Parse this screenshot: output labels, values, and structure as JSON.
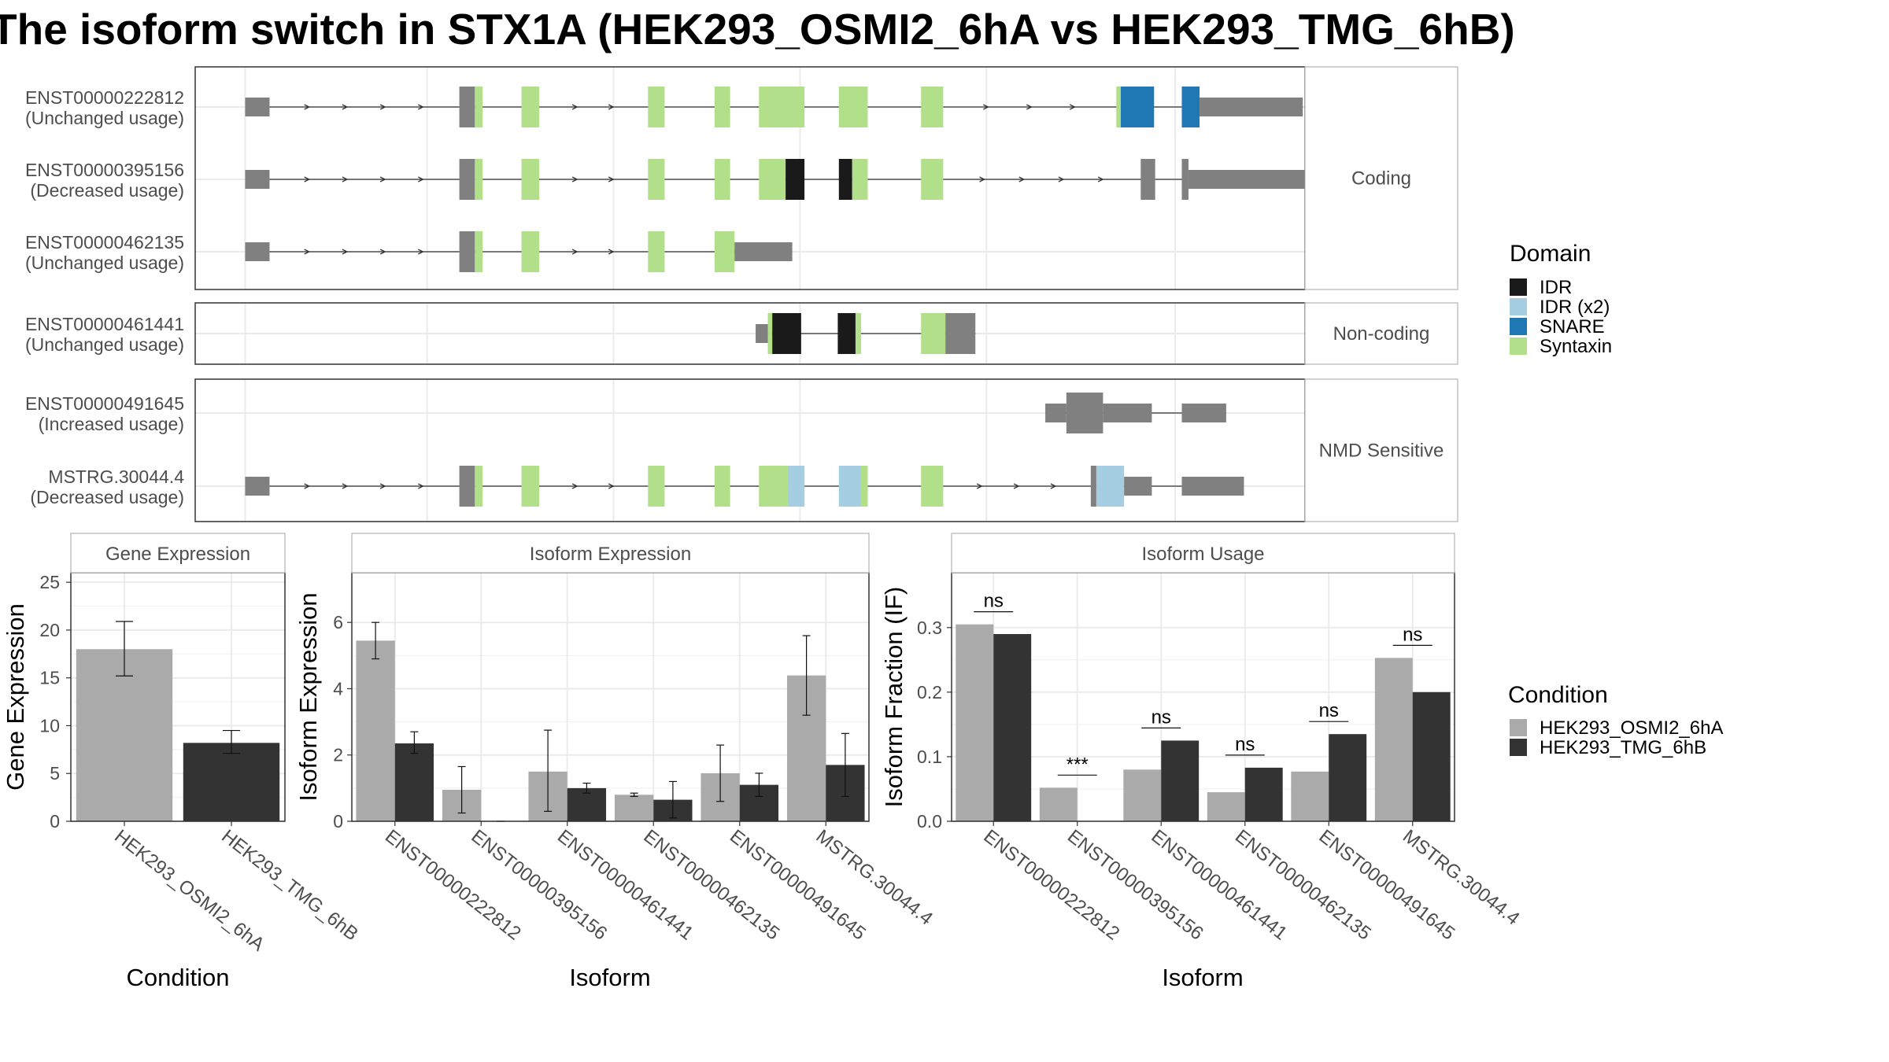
{
  "title": "The isoform switch in STX1A (HEK293_OSMI2_6hA vs HEK293_TMG_6hB)",
  "colors": {
    "exon": "#808080",
    "IDR": "#1a1a1a",
    "IDR (x2)": "#a6cee3",
    "SNARE": "#1f78b4",
    "Syntaxin": "#b2df8a",
    "cond_a": "#aaaaaa",
    "cond_b": "#333333"
  },
  "legend_domain": {
    "title": "Domain",
    "items": [
      {
        "label": "IDR",
        "color": "#1a1a1a"
      },
      {
        "label": "IDR (x2)",
        "color": "#a6cee3"
      },
      {
        "label": "SNARE",
        "color": "#1f78b4"
      },
      {
        "label": "Syntaxin",
        "color": "#b2df8a"
      }
    ]
  },
  "legend_condition": {
    "title": "Condition",
    "items": [
      {
        "label": "HEK293_OSMI2_6hA",
        "color": "#aaaaaa"
      },
      {
        "label": "HEK293_TMG_6hB",
        "color": "#333333"
      }
    ]
  },
  "transcript_panels": [
    {
      "label": "Coding",
      "transcripts": [
        {
          "id": "ENST00000222812",
          "usage": "(Unchanged usage)",
          "span": [
            0.045,
            0.998
          ],
          "exons": [
            [
              0.045,
              0.067,
              "s"
            ],
            [
              0.238,
              0.252,
              "t"
            ],
            [
              0.252,
              0.259,
              "t",
              "Syntaxin"
            ],
            [
              0.294,
              0.31,
              "t",
              "Syntaxin"
            ],
            [
              0.408,
              0.423,
              "t",
              "Syntaxin"
            ],
            [
              0.468,
              0.482,
              "t",
              "Syntaxin"
            ],
            [
              0.508,
              0.549,
              "t",
              "Syntaxin"
            ],
            [
              0.58,
              0.606,
              "t",
              "Syntaxin"
            ],
            [
              0.654,
              0.674,
              "t",
              "Syntaxin"
            ],
            [
              0.83,
              0.834,
              "t",
              "Syntaxin"
            ],
            [
              0.834,
              0.864,
              "t",
              "SNARE"
            ],
            [
              0.889,
              0.905,
              "t",
              "SNARE"
            ],
            [
              0.905,
              0.998,
              "s"
            ]
          ]
        },
        {
          "id": "ENST00000395156",
          "usage": "(Decreased usage)",
          "span": [
            0.045,
            1.002
          ],
          "exons": [
            [
              0.045,
              0.067,
              "s"
            ],
            [
              0.238,
              0.252,
              "t"
            ],
            [
              0.252,
              0.259,
              "t",
              "Syntaxin"
            ],
            [
              0.294,
              0.31,
              "t",
              "Syntaxin"
            ],
            [
              0.408,
              0.423,
              "t",
              "Syntaxin"
            ],
            [
              0.468,
              0.482,
              "t",
              "Syntaxin"
            ],
            [
              0.508,
              0.532,
              "t",
              "Syntaxin"
            ],
            [
              0.532,
              0.549,
              "t",
              "IDR"
            ],
            [
              0.58,
              0.592,
              "t",
              "IDR"
            ],
            [
              0.592,
              0.606,
              "t",
              "Syntaxin"
            ],
            [
              0.654,
              0.674,
              "t",
              "Syntaxin"
            ],
            [
              0.852,
              0.865,
              "t"
            ],
            [
              0.889,
              0.895,
              "t"
            ],
            [
              0.895,
              1.002,
              "s"
            ]
          ]
        },
        {
          "id": "ENST00000462135",
          "usage": "(Unchanged usage)",
          "span": [
            0.045,
            0.538
          ],
          "exons": [
            [
              0.045,
              0.067,
              "s"
            ],
            [
              0.238,
              0.252,
              "t"
            ],
            [
              0.252,
              0.259,
              "t",
              "Syntaxin"
            ],
            [
              0.294,
              0.31,
              "t",
              "Syntaxin"
            ],
            [
              0.408,
              0.423,
              "t",
              "Syntaxin"
            ],
            [
              0.468,
              0.486,
              "t",
              "Syntaxin"
            ],
            [
              0.486,
              0.538,
              "s"
            ]
          ]
        }
      ]
    },
    {
      "label": "Non-coding",
      "transcripts": [
        {
          "id": "ENST00000461441",
          "usage": "(Unchanged usage)",
          "span": [
            0.505,
            0.703
          ],
          "exons": [
            [
              0.505,
              0.516,
              "s"
            ],
            [
              0.516,
              0.52,
              "t",
              "Syntaxin"
            ],
            [
              0.52,
              0.546,
              "t",
              "IDR"
            ],
            [
              0.579,
              0.595,
              "t",
              "IDR"
            ],
            [
              0.595,
              0.6,
              "t",
              "Syntaxin"
            ],
            [
              0.654,
              0.676,
              "t",
              "Syntaxin"
            ],
            [
              0.676,
              0.703,
              "t"
            ]
          ]
        }
      ]
    },
    {
      "label": "NMD Sensitive",
      "transcripts": [
        {
          "id": "ENST00000491645",
          "usage": "(Increased usage)",
          "span": [
            0.766,
            0.929
          ],
          "exons": [
            [
              0.766,
              0.785,
              "s"
            ],
            [
              0.785,
              0.818,
              "t"
            ],
            [
              0.818,
              0.862,
              "s"
            ],
            [
              0.889,
              0.929,
              "s"
            ]
          ]
        },
        {
          "id": "MSTRG.30044.4",
          "usage": "(Decreased usage)",
          "span": [
            0.045,
            0.945
          ],
          "exons": [
            [
              0.045,
              0.067,
              "s"
            ],
            [
              0.238,
              0.252,
              "t"
            ],
            [
              0.252,
              0.259,
              "t",
              "Syntaxin"
            ],
            [
              0.294,
              0.31,
              "t",
              "Syntaxin"
            ],
            [
              0.408,
              0.423,
              "t",
              "Syntaxin"
            ],
            [
              0.468,
              0.482,
              "t",
              "Syntaxin"
            ],
            [
              0.508,
              0.534,
              "t",
              "Syntaxin"
            ],
            [
              0.534,
              0.549,
              "t",
              "IDR (x2)"
            ],
            [
              0.58,
              0.6,
              "t",
              "IDR (x2)"
            ],
            [
              0.6,
              0.606,
              "t",
              "Syntaxin"
            ],
            [
              0.654,
              0.674,
              "t",
              "Syntaxin"
            ],
            [
              0.807,
              0.812,
              "t"
            ],
            [
              0.812,
              0.837,
              "t",
              "IDR (x2)"
            ],
            [
              0.837,
              0.862,
              "s"
            ],
            [
              0.889,
              0.945,
              "s"
            ]
          ]
        }
      ]
    }
  ],
  "chart_data": [
    {
      "type": "bar",
      "panel_title": "Gene Expression",
      "xlabel": "Condition",
      "ylabel": "Gene Expression",
      "ylim": [
        0,
        26
      ],
      "yticks": [
        0,
        5,
        10,
        15,
        20,
        25
      ],
      "categories": [
        "HEK293_OSMI2_6hA",
        "HEK293_TMG_6hB"
      ],
      "series": [
        {
          "values": [
            18.0,
            8.2
          ],
          "err_low": [
            15.2,
            7.1
          ],
          "err_high": [
            20.9,
            9.5
          ]
        }
      ],
      "bar_colors": [
        "#aaaaaa",
        "#333333"
      ]
    },
    {
      "type": "bar",
      "panel_title": "Isoform Expression",
      "xlabel": "Isoform",
      "ylabel": "Isoform Expression",
      "ylim": [
        0,
        7.5
      ],
      "yticks": [
        0,
        2,
        4,
        6
      ],
      "categories": [
        "ENST00000222812",
        "ENST00000395156",
        "ENST00000461441",
        "ENST00000462135",
        "ENST00000491645",
        "MSTRG.30044.4"
      ],
      "series": [
        {
          "name": "HEK293_OSMI2_6hA",
          "values": [
            5.45,
            0.95,
            1.5,
            0.8,
            1.45,
            4.4
          ],
          "err_low": [
            4.9,
            0.25,
            0.3,
            0.75,
            0.6,
            3.2
          ],
          "err_high": [
            6.0,
            1.65,
            2.75,
            0.85,
            2.3,
            5.6
          ]
        },
        {
          "name": "HEK293_TMG_6hB",
          "values": [
            2.35,
            0.0,
            1.0,
            0.65,
            1.1,
            1.7
          ],
          "err_low": [
            2.05,
            0.0,
            0.85,
            0.1,
            0.75,
            0.75
          ],
          "err_high": [
            2.7,
            0.0,
            1.15,
            1.2,
            1.45,
            2.65
          ]
        }
      ]
    },
    {
      "type": "bar",
      "panel_title": "Isoform Usage",
      "xlabel": "Isoform",
      "ylabel": "Isoform Fraction (IF)",
      "ylim": [
        0,
        0.385
      ],
      "yticks": [
        0.0,
        0.1,
        0.2,
        0.3
      ],
      "ytick_labels": [
        "0.0",
        "0.1",
        "0.2",
        "0.3"
      ],
      "categories": [
        "ENST00000222812",
        "ENST00000395156",
        "ENST00000461441",
        "ENST00000462135",
        "ENST00000491645",
        "MSTRG.30044.4"
      ],
      "series": [
        {
          "name": "HEK293_OSMI2_6hA",
          "values": [
            0.305,
            0.052,
            0.08,
            0.045,
            0.077,
            0.253
          ]
        },
        {
          "name": "HEK293_TMG_6hB",
          "values": [
            0.29,
            0.0,
            0.125,
            0.083,
            0.135,
            0.2
          ]
        }
      ],
      "significance": [
        "ns",
        "***",
        "ns",
        "ns",
        "ns",
        "ns"
      ]
    }
  ]
}
